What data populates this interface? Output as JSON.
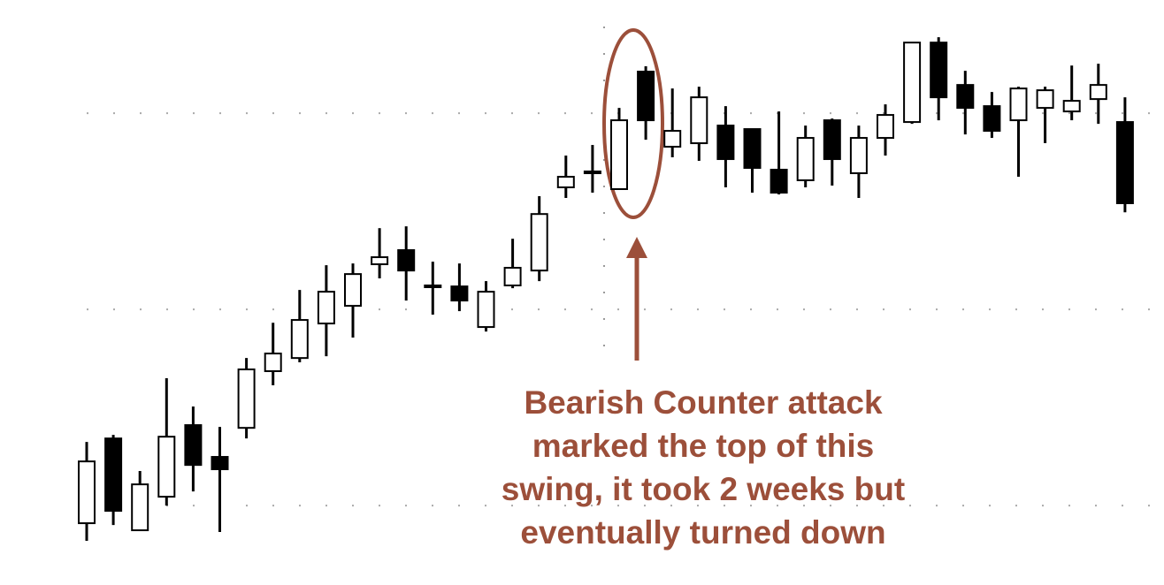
{
  "chart_data": {
    "type": "candlestick",
    "ylim": [
      -40.5,
      257.7
    ],
    "gridlines": [
      0,
      100,
      200
    ],
    "grid": true,
    "up_color": "#ffffff",
    "down_color": "#000000",
    "annotation": [
      "Bearish Counter attack",
      "marked the top of this",
      "swing, it took 2 weeks but",
      "eventually turned down"
    ],
    "annotation_color": "#9c4f3a",
    "open": [
      -9.0,
      34.2,
      -12.6,
      4.5,
      41.0,
      24.8,
      39.6,
      68.5,
      75.2,
      92.8,
      101.8,
      123.0,
      130.2,
      112.2,
      111.7,
      91.0,
      112.2,
      119.8,
      162.2,
      170.3,
      161.3,
      221.2,
      182.9,
      184.7,
      193.7,
      191.9,
      171.2,
      165.8,
      196.4,
      169.4,
      187.4,
      195.5,
      236.0,
      214.4,
      203.6,
      196.4,
      202.7,
      200.9,
      207.2,
      195.5
    ],
    "high": [
      32.4,
      36.0,
      17.6,
      64.9,
      50.5,
      40.1,
      75.2,
      93.2,
      109.9,
      122.5,
      123.4,
      141.4,
      142.3,
      124.3,
      123.4,
      114.4,
      136.0,
      157.7,
      178.4,
      183.8,
      202.7,
      223.9,
      212.6,
      213.5,
      203.6,
      191.9,
      200.9,
      193.7,
      197.3,
      193.7,
      204.5,
      236.0,
      238.7,
      221.6,
      210.8,
      213.5,
      213.5,
      224.3,
      225.2,
      208.1
    ],
    "low": [
      -18.0,
      -9.9,
      -12.6,
      0,
      7.2,
      -13.5,
      34.2,
      61.3,
      73.0,
      76.1,
      85.6,
      115.8,
      104.5,
      97.3,
      99.1,
      88.7,
      110.8,
      114.4,
      156.8,
      159.5,
      161.3,
      186.5,
      177.5,
      175.7,
      162.2,
      159.5,
      158.6,
      162.2,
      163.1,
      156.8,
      178.4,
      194.6,
      196.4,
      189.2,
      187.4,
      167.6,
      184.7,
      196.4,
      194.6,
      149.5
    ],
    "close": [
      22.5,
      -2.7,
      10.8,
      35.1,
      20.7,
      18.5,
      69.4,
      77.5,
      94.6,
      109.0,
      118.0,
      126.6,
      119.8,
      111.3,
      104.5,
      109.0,
      121.2,
      148.6,
      167.6,
      169.4,
      196.4,
      196.4,
      191.0,
      208.1,
      176.6,
      172.1,
      159.5,
      187.4,
      176.6,
      187.4,
      199.1,
      236.0,
      208.1,
      202.7,
      191.0,
      212.6,
      211.7,
      206.3,
      214.4,
      154.1
    ]
  }
}
